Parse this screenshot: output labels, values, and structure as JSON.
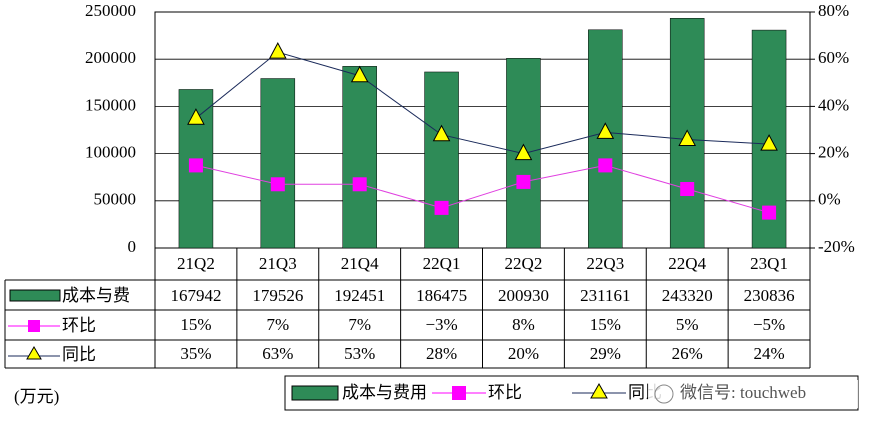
{
  "chart_data": {
    "type": "bar-line-table",
    "categories": [
      "21Q2",
      "21Q3",
      "21Q4",
      "22Q1",
      "22Q2",
      "22Q3",
      "22Q4",
      "23Q1"
    ],
    "series": [
      {
        "name": "成本与费用",
        "color": "#2e8b57",
        "values": [
          167942,
          179526,
          192451,
          186475,
          200930,
          231161,
          243320,
          230836
        ]
      },
      {
        "name": "环比",
        "color": "#ff00ff",
        "axis": "y2",
        "values": [
          15,
          7,
          7,
          -3,
          8,
          15,
          5,
          -5
        ],
        "value_labels": [
          "15%",
          "7%",
          "7%",
          "−3%",
          "8%",
          "15%",
          "5%",
          "−5%"
        ]
      },
      {
        "name": "同比",
        "color": "#ffff00",
        "axis": "y2",
        "values": [
          35,
          63,
          53,
          28,
          20,
          29,
          26,
          24
        ],
        "value_labels": [
          "35%",
          "63%",
          "53%",
          "28%",
          "20%",
          "29%",
          "26%",
          "24%"
        ]
      }
    ],
    "table_row_labels": [
      "成本与费",
      "环比",
      "同比"
    ],
    "ylim": [
      0,
      250000
    ],
    "yticks": [
      0,
      50000,
      100000,
      150000,
      200000,
      250000
    ],
    "y2lim": [
      -20,
      80
    ],
    "y2ticks": [
      {
        "value": -20,
        "label": "-20%"
      },
      {
        "value": 0,
        "label": "0%"
      },
      {
        "value": 20,
        "label": "20%"
      },
      {
        "value": 40,
        "label": "40%"
      },
      {
        "value": 60,
        "label": "60%"
      },
      {
        "value": 80,
        "label": "80%"
      }
    ],
    "grid": true,
    "unit_label": "(万元)",
    "watermark": "微信号: touchweb"
  }
}
